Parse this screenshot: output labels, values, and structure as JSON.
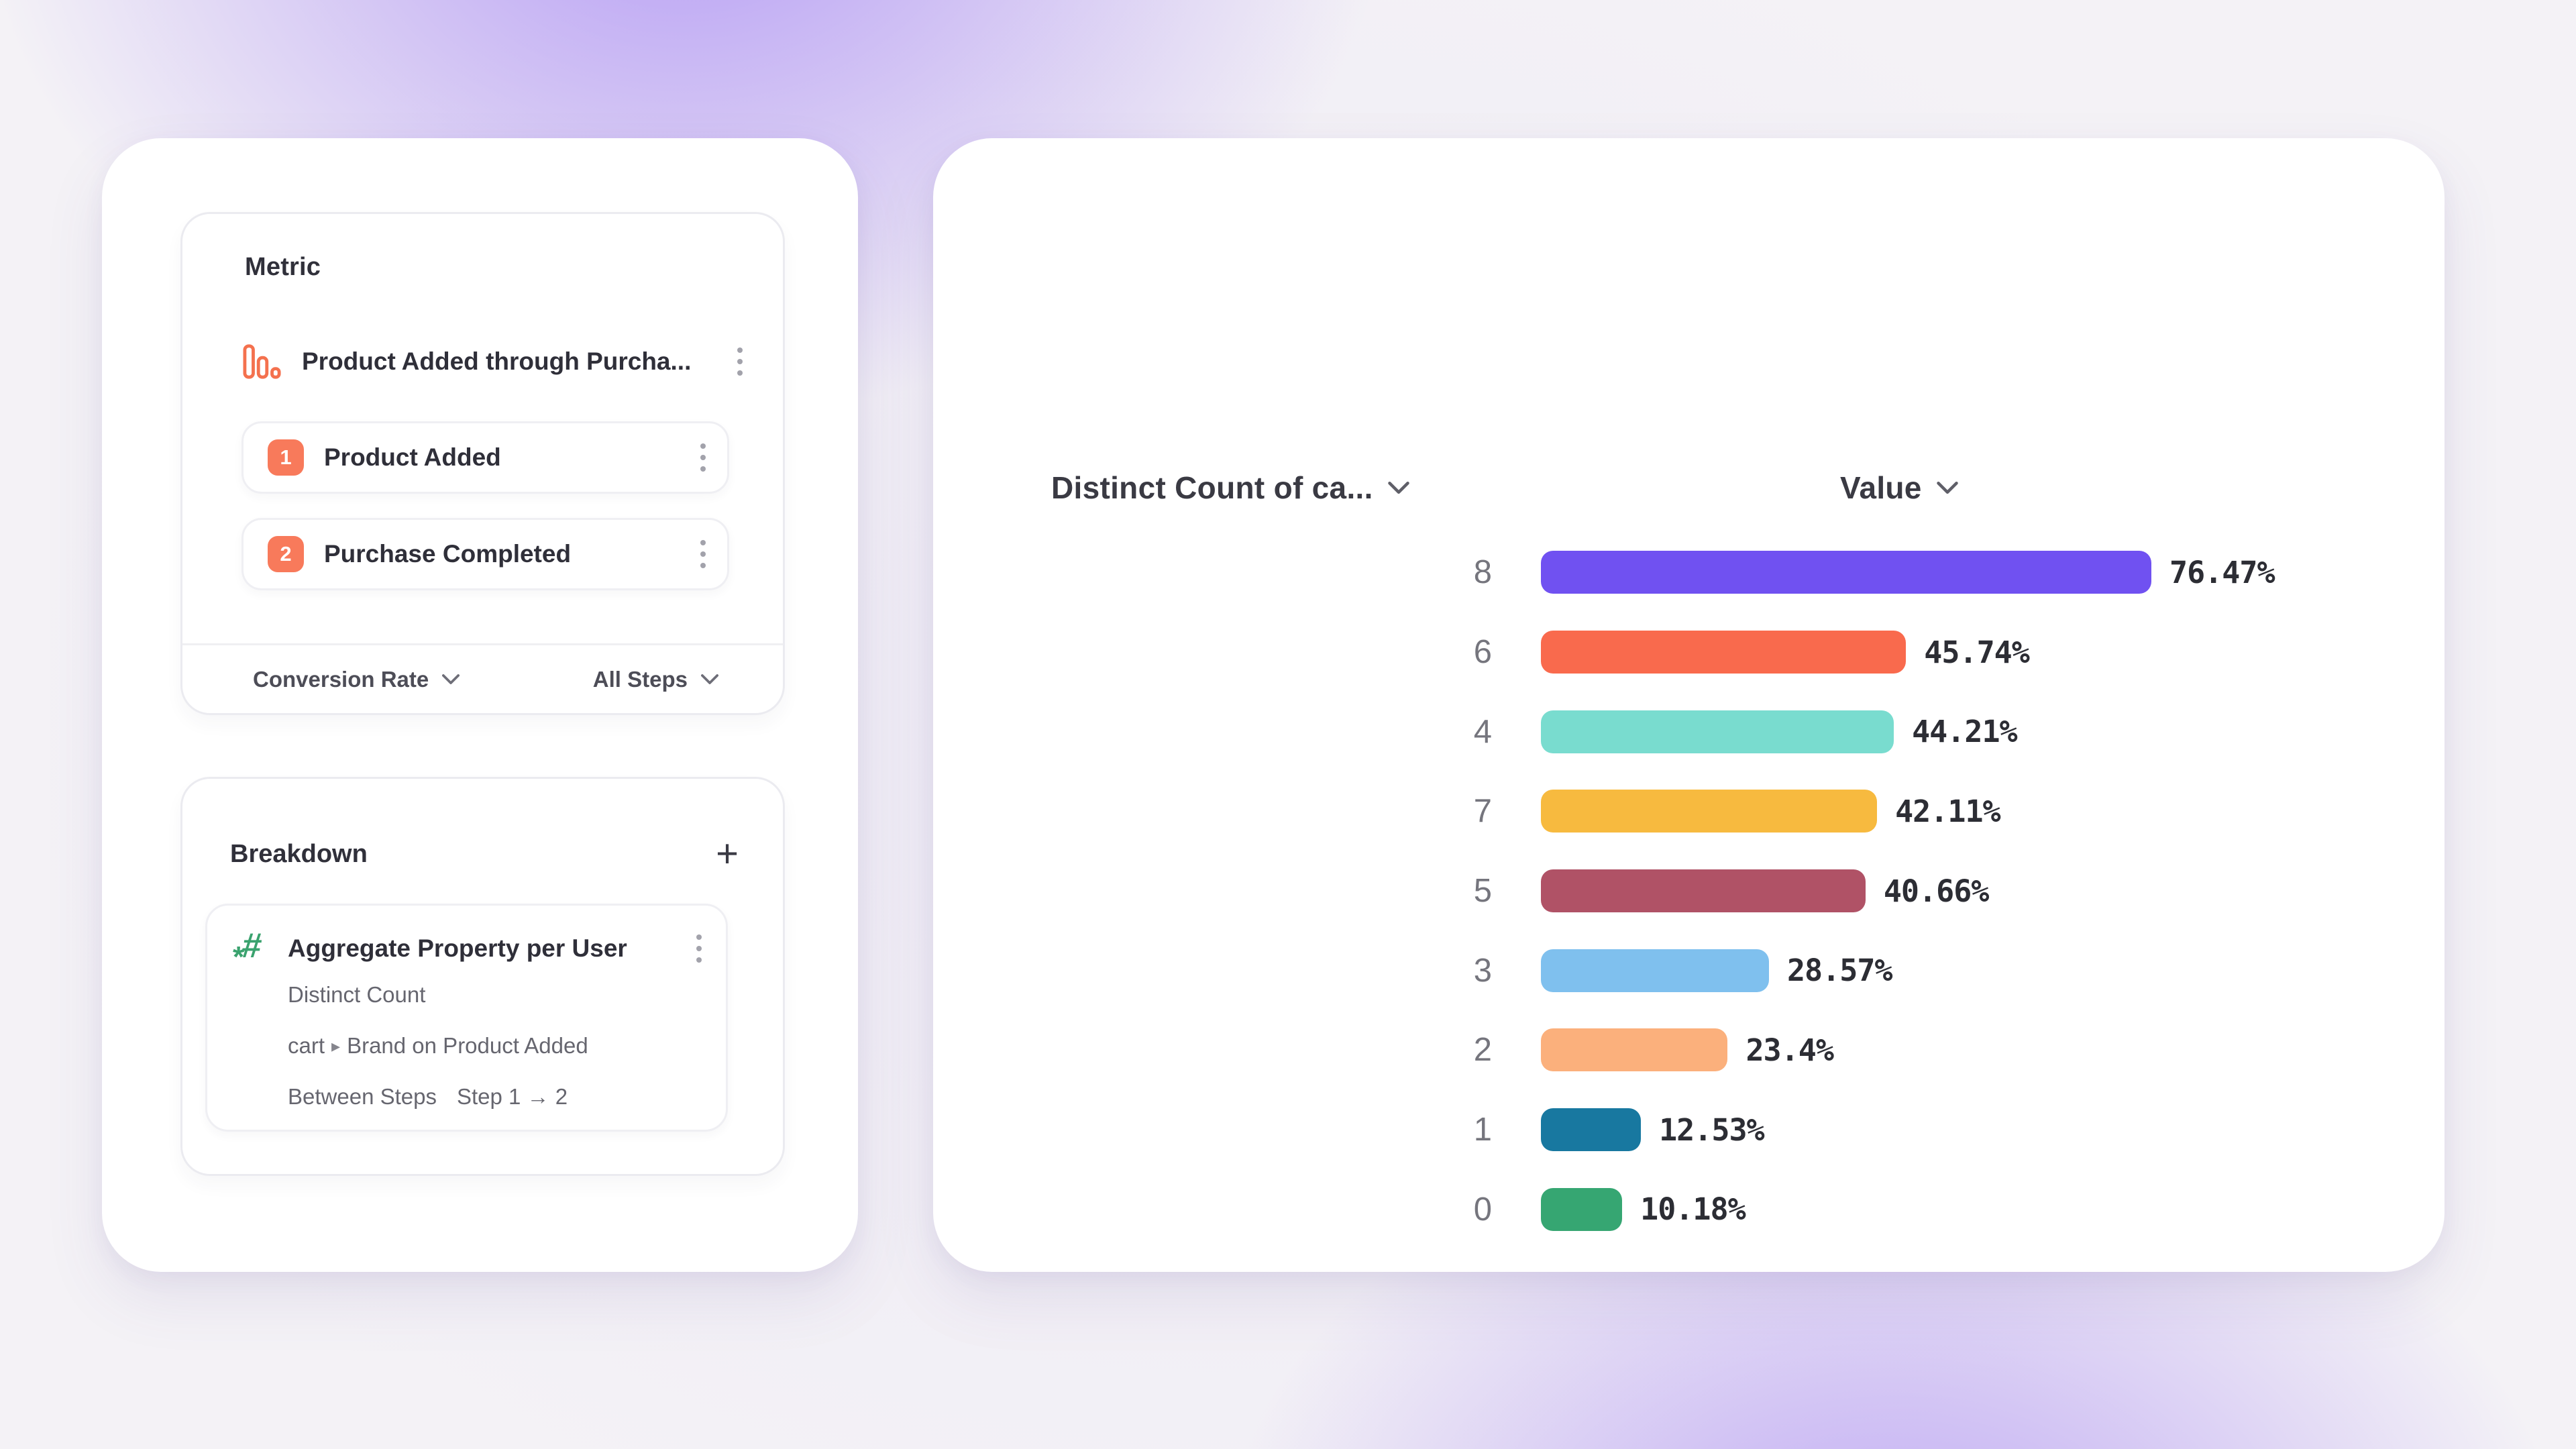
{
  "metric_panel": {
    "title": "Metric",
    "funnel": {
      "label": "Product Added through Purcha..."
    },
    "steps": [
      {
        "number": "1",
        "label": "Product Added"
      },
      {
        "number": "2",
        "label": "Purchase Completed"
      }
    ],
    "footer": {
      "measure_label": "Conversion Rate",
      "steps_label": "All Steps"
    }
  },
  "breakdown_panel": {
    "title": "Breakdown",
    "add_label": "+",
    "item": {
      "title": "Aggregate Property per User",
      "aggregation": "Distinct Count",
      "property_event": "cart",
      "property_name": "Brand on Product Added",
      "between_label": "Between Steps",
      "step_range": "Step 1 → 2"
    }
  },
  "chart": {
    "left_header": "Distinct Count of ca...",
    "right_header": "Value"
  },
  "chart_data": {
    "type": "bar",
    "orientation": "horizontal",
    "title": "",
    "xlabel": "Value",
    "ylabel": "Distinct Count of ca...",
    "xlim": [
      0,
      100
    ],
    "grid": false,
    "categories": [
      "8",
      "6",
      "4",
      "7",
      "5",
      "3",
      "2",
      "1",
      "0"
    ],
    "values": [
      76.47,
      45.74,
      44.21,
      42.11,
      40.66,
      28.57,
      23.4,
      12.53,
      10.18
    ],
    "labels": [
      "76.47%",
      "45.74%",
      "44.21%",
      "42.11%",
      "40.66%",
      "28.57%",
      "23.4%",
      "12.53%",
      "10.18%"
    ],
    "colors": [
      "#7051f1",
      "#f96a4d",
      "#79dccf",
      "#f7ba3f",
      "#b05266",
      "#7fc0ee",
      "#fbb07c",
      "#1878a0",
      "#36a672"
    ]
  },
  "colors": {
    "accent_orange": "#f87a5b",
    "accent_green": "#3aa26e",
    "background_purple": "#8f68f1"
  }
}
